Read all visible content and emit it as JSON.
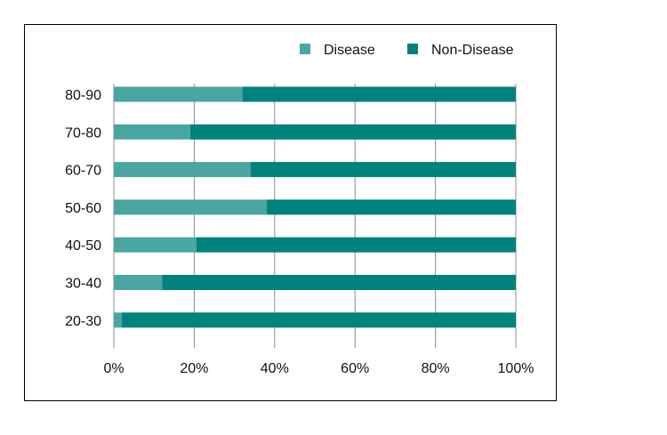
{
  "chart_data": {
    "type": "bar",
    "orientation": "horizontal",
    "stacked": "percent",
    "categories": [
      "20-30",
      "30-40",
      "40-50",
      "50-60",
      "60-70",
      "70-80",
      "80-90"
    ],
    "series": [
      {
        "name": "Disease",
        "color": "#4aa6a1",
        "values": [
          2,
          12,
          20.5,
          38,
          34,
          19,
          32
        ]
      },
      {
        "name": "Non-Disease",
        "color": "#00827d",
        "values": [
          98,
          88,
          79.5,
          62,
          66,
          81,
          68
        ]
      }
    ],
    "x_ticks": [
      "0%",
      "20%",
      "40%",
      "60%",
      "80%",
      "100%"
    ],
    "xlim": [
      0,
      100
    ],
    "grid": "vertical",
    "legend_position": "top-right",
    "title": "",
    "xlabel": "",
    "ylabel": ""
  }
}
